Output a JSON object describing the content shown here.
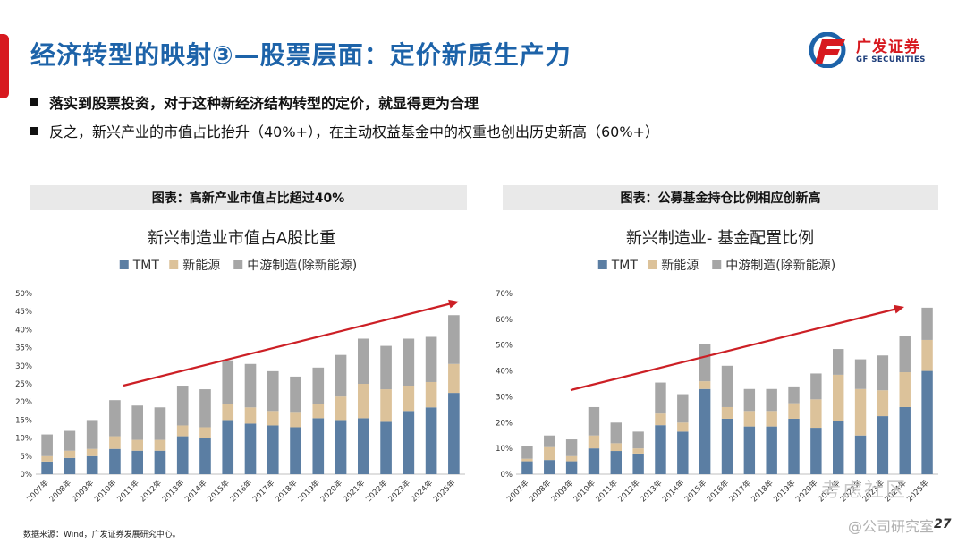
{
  "header": {
    "title": "经济转型的映射③—股票层面：定价新质生产力",
    "logo_name": "广发证券",
    "logo_sub": "GF SECURITIES"
  },
  "bullets": [
    "落实到股票投资，对于这种新经济结构转型的定价，就显得更为合理",
    "反之，新兴产业的市值占比抬升（40%+），在主动权益基金中的权重也创出历史新高（60%+）"
  ],
  "colors": {
    "tmt": "#5b7ea3",
    "new_energy": "#dcc29a",
    "midstream": "#a6a6a6",
    "arrow": "#cc1f25",
    "title": "#1d63a9"
  },
  "chart_data": [
    {
      "type": "bar",
      "stacked": true,
      "header": "图表：高新产业市值占比超过40%",
      "title": "新兴制造业市值占A股比重",
      "categories": [
        "2007年",
        "2008年",
        "2009年",
        "2010年",
        "2011年",
        "2012年",
        "2013年",
        "2014年",
        "2015年",
        "2016年",
        "2017年",
        "2018年",
        "2019年",
        "2020年",
        "2021年",
        "2022年",
        "2023年",
        "2024年",
        "2025年"
      ],
      "series": [
        {
          "name": "TMT",
          "values": [
            3.5,
            4.5,
            5,
            7,
            6.5,
            6.5,
            10.5,
            10,
            15,
            14,
            13.5,
            13,
            15.5,
            15,
            15.5,
            14.5,
            17.5,
            18.5,
            22.5
          ]
        },
        {
          "name": "新能源",
          "values": [
            1.5,
            2,
            2,
            3.5,
            3,
            3,
            3,
            3,
            4.5,
            4.5,
            4,
            4,
            4,
            6.5,
            9.5,
            9,
            7,
            7,
            8
          ]
        },
        {
          "name": "中游制造(除新能源)",
          "values": [
            6,
            5.5,
            8,
            10,
            9.5,
            9,
            11,
            10.5,
            12,
            12,
            11,
            10,
            10,
            11.5,
            12.5,
            12,
            13,
            12.5,
            13.5
          ]
        }
      ],
      "ylim": [
        0,
        50
      ],
      "yticks": [
        "0%",
        "5%",
        "10%",
        "15%",
        "20%",
        "25%",
        "30%",
        "35%",
        "40%",
        "45%",
        "50%"
      ]
    },
    {
      "type": "bar",
      "stacked": true,
      "header": "图表：公募基金持仓比例相应创新高",
      "title": "新兴制造业- 基金配置比例",
      "categories": [
        "2007年",
        "2008年",
        "2009年",
        "2010年",
        "2011年",
        "2012年",
        "2013年",
        "2014年",
        "2015年",
        "2016年",
        "2017年",
        "2018年",
        "2019年",
        "2020年",
        "2021年",
        "2022年",
        "2023年",
        "2024年",
        "2025年"
      ],
      "series": [
        {
          "name": "TMT",
          "values": [
            5,
            5.5,
            5,
            10,
            9,
            8,
            19,
            16.5,
            33,
            21.5,
            18.5,
            18.5,
            21.5,
            18,
            20.5,
            15,
            22.5,
            26,
            40
          ]
        },
        {
          "name": "新能源",
          "values": [
            1,
            5,
            2,
            5,
            3,
            2,
            4.5,
            3.5,
            3,
            4.5,
            6,
            6,
            6,
            11,
            18,
            18,
            10,
            13.5,
            12
          ]
        },
        {
          "name": "中游制造(除新能源)",
          "values": [
            5,
            4.5,
            6.5,
            11,
            8,
            6.5,
            12,
            11,
            14.5,
            16,
            8.5,
            8.5,
            6.5,
            10,
            10,
            11.5,
            13.5,
            14,
            12.5
          ]
        }
      ],
      "ylim": [
        0,
        70
      ],
      "yticks": [
        "0%",
        "10%",
        "20%",
        "30%",
        "40%",
        "50%",
        "60%",
        "70%"
      ]
    }
  ],
  "footer": {
    "source": "数据来源：Wind，广发证券发展研究中心。",
    "page_number": "27",
    "watermark_community": "考虑社区",
    "watermark_account": "@公司研究室"
  }
}
